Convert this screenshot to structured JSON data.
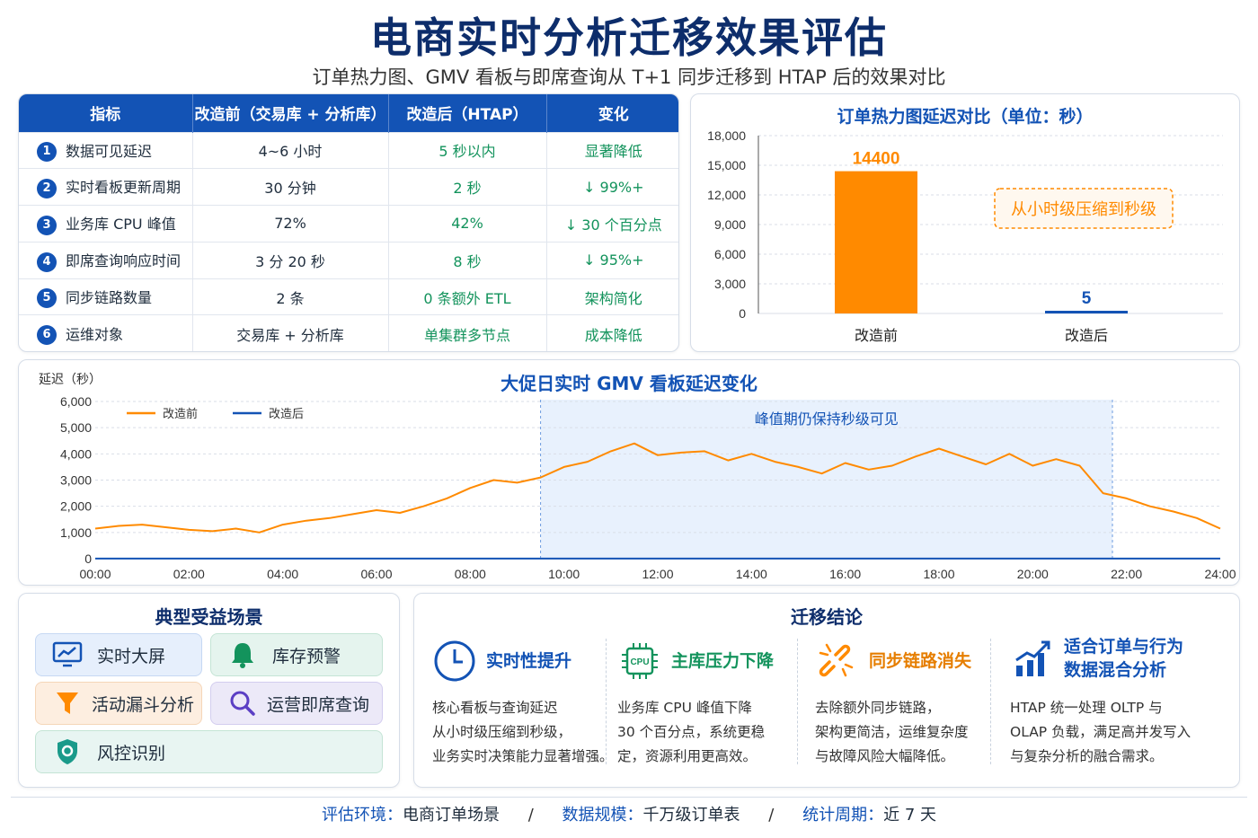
{
  "title": "电商实时分析迁移效果评估",
  "subtitle": "订单热力图、GMV 看板与即席查询从 T+1 同步迁移到 HTAP 后的效果对比",
  "table": {
    "headers": [
      "指标",
      "改造前（交易库 + 分析库）",
      "改造后（HTAP）",
      "变化"
    ],
    "rows": [
      {
        "num": "1",
        "metric": "数据可见延迟",
        "before": "4~6 小时",
        "after": "5 秒以内",
        "change": "显著降低"
      },
      {
        "num": "2",
        "metric": "实时看板更新周期",
        "before": "30 分钟",
        "after": "2 秒",
        "change": "↓ 99%+"
      },
      {
        "num": "3",
        "metric": "业务库 CPU 峰值",
        "before": "72%",
        "after": "42%",
        "change": "↓ 30 个百分点"
      },
      {
        "num": "4",
        "metric": "即席查询响应时间",
        "before": "3 分 20 秒",
        "after": "8 秒",
        "change": "↓ 95%+"
      },
      {
        "num": "5",
        "metric": "同步链路数量",
        "before": "2 条",
        "after": "0 条额外 ETL",
        "change": "架构简化"
      },
      {
        "num": "6",
        "metric": "运维对象",
        "before": "交易库 + 分析库",
        "after": "单集群多节点",
        "change": "成本降低"
      }
    ]
  },
  "chart_data": [
    {
      "type": "bar",
      "title": "订单热力图延迟对比（单位：秒）",
      "categories": [
        "改造前",
        "改造后"
      ],
      "values": [
        14400,
        5
      ],
      "value_labels": [
        "14400",
        "5"
      ],
      "colors": [
        "#ff8a00",
        "#1353b5"
      ],
      "ylim": [
        0,
        18000
      ],
      "yticks": [
        0,
        3000,
        6000,
        9000,
        12000,
        15000,
        18000
      ],
      "ytick_labels": [
        "0",
        "3,000",
        "6,000",
        "9,000",
        "12,000",
        "15,000",
        "18,000"
      ],
      "annotation": "从小时级压缩到秒级",
      "grid": true
    },
    {
      "type": "line",
      "title": "大促日实时 GMV 看板延迟变化",
      "ylabel": "延迟（秒）",
      "ylim": [
        0,
        6000
      ],
      "yticks": [
        0,
        1000,
        2000,
        3000,
        4000,
        5000,
        6000
      ],
      "ytick_labels": [
        "0",
        "1,000",
        "2,000",
        "3,000",
        "4,000",
        "5,000",
        "6,000"
      ],
      "xlim": [
        0,
        24
      ],
      "xtick_labels": [
        "00:00",
        "02:00",
        "04:00",
        "06:00",
        "08:00",
        "10:00",
        "12:00",
        "14:00",
        "16:00",
        "18:00",
        "20:00",
        "22:00",
        "24:00"
      ],
      "legend_position": "top-left",
      "highlight": {
        "from": 9.5,
        "to": 21.7,
        "label": "峰值期仍保持秒级可见"
      },
      "x": [
        0,
        0.5,
        1,
        1.5,
        2,
        2.5,
        3,
        3.5,
        4,
        4.5,
        5,
        5.5,
        6,
        6.5,
        7,
        7.5,
        8,
        8.5,
        9,
        9.5,
        10,
        10.5,
        11,
        11.5,
        12,
        12.5,
        13,
        13.5,
        14,
        14.5,
        15,
        15.5,
        16,
        16.5,
        17,
        17.5,
        18,
        18.5,
        19,
        19.5,
        20,
        20.5,
        21,
        21.5,
        22,
        22.5,
        23,
        23.5,
        24
      ],
      "series": [
        {
          "name": "改造前",
          "color": "#ff8a00",
          "values": [
            1150,
            1250,
            1300,
            1200,
            1100,
            1050,
            1150,
            1000,
            1300,
            1450,
            1550,
            1700,
            1850,
            1750,
            2000,
            2300,
            2700,
            3000,
            2900,
            3100,
            3500,
            3700,
            4100,
            4400,
            3950,
            4050,
            4100,
            3750,
            4000,
            3700,
            3500,
            3250,
            3650,
            3400,
            3550,
            3900,
            4200,
            3900,
            3600,
            4000,
            3550,
            3800,
            3550,
            2500,
            2300,
            2000,
            1800,
            1550,
            1150
          ]
        },
        {
          "name": "改造后",
          "color": "#1353b5",
          "values": [
            5,
            5,
            5,
            5,
            5,
            5,
            5,
            5,
            5,
            5,
            5,
            5,
            5,
            5,
            5,
            5,
            5,
            5,
            5,
            5,
            5,
            5,
            5,
            5,
            5,
            5,
            5,
            5,
            5,
            5,
            5,
            5,
            5,
            5,
            5,
            5,
            5,
            5,
            5,
            5,
            5,
            5,
            5,
            5,
            5,
            5,
            5,
            5,
            5
          ]
        }
      ],
      "grid": true
    }
  ],
  "scenarios": {
    "title": "典型受益场景",
    "items": [
      {
        "label": "实时大屏",
        "icon": "monitor-chart-icon",
        "bg": "#e6effc"
      },
      {
        "label": "库存预警",
        "icon": "bell-icon",
        "bg": "#e5f4ee"
      },
      {
        "label": "活动漏斗分析",
        "icon": "funnel-icon",
        "bg": "#fdeee0"
      },
      {
        "label": "运营即席查询",
        "icon": "search-icon",
        "bg": "#ece9f8"
      },
      {
        "label": "风控识别",
        "icon": "shield-icon",
        "bg": "#e5f4ee"
      }
    ]
  },
  "conclusion": {
    "title": "迁移结论",
    "items": [
      {
        "title": "实时性提升",
        "icon": "clock-icon",
        "body": [
          "核心看板与查询延迟",
          "从小时级压缩到秒级，",
          "业务实时决策能力显著增强。"
        ]
      },
      {
        "title": "主库压力下降",
        "icon": "cpu-icon",
        "body": [
          "业务库 CPU 峰值下降",
          "30 个百分点，系统更稳",
          "定，资源利用更高效。"
        ]
      },
      {
        "title": "同步链路消失",
        "icon": "broken-link-icon",
        "body": [
          "去除额外同步链路，",
          "架构更简洁，运维复杂度",
          "与故障风险大幅降低。"
        ]
      },
      {
        "title_lines": [
          "适合订单与行为",
          "数据混合分析"
        ],
        "icon": "trend-bars-icon",
        "body": [
          "HTAP 统一处理 OLTP 与",
          "OLAP 负载，满足高并发写入",
          "与复杂分析的融合需求。"
        ]
      }
    ]
  },
  "footer": {
    "env_label": "评估环境：",
    "env_value": "电商订单场景",
    "sep": "/",
    "scale_label": "数据规模：",
    "scale_value": "千万级订单表",
    "period_label": "统计周期：",
    "period_value": "近 7 天"
  }
}
